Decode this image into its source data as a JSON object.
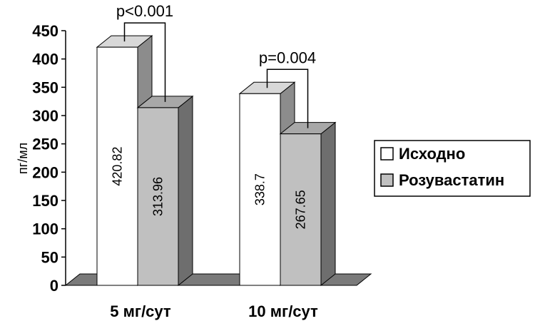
{
  "chart_data": {
    "type": "bar",
    "ylabel": "пг/мл",
    "ylim": [
      0,
      450
    ],
    "yticks": [
      0,
      50,
      100,
      150,
      200,
      250,
      300,
      350,
      400,
      450
    ],
    "categories": [
      "5 мг/сут",
      "10 мг/сут"
    ],
    "series": [
      {
        "name": "Исходно",
        "values": [
          420.82,
          338.7
        ],
        "labels": [
          "420.82",
          "338.7"
        ],
        "color": "#ffffff"
      },
      {
        "name": "Розувастатин",
        "values": [
          313.96,
          267.65
        ],
        "labels": [
          "313.96",
          "267.65"
        ],
        "color": "#c0c0c0"
      }
    ],
    "annotations": [
      "p<0.001",
      "p=0.004"
    ],
    "legend_position": "right",
    "style": "3d",
    "grid": false
  }
}
